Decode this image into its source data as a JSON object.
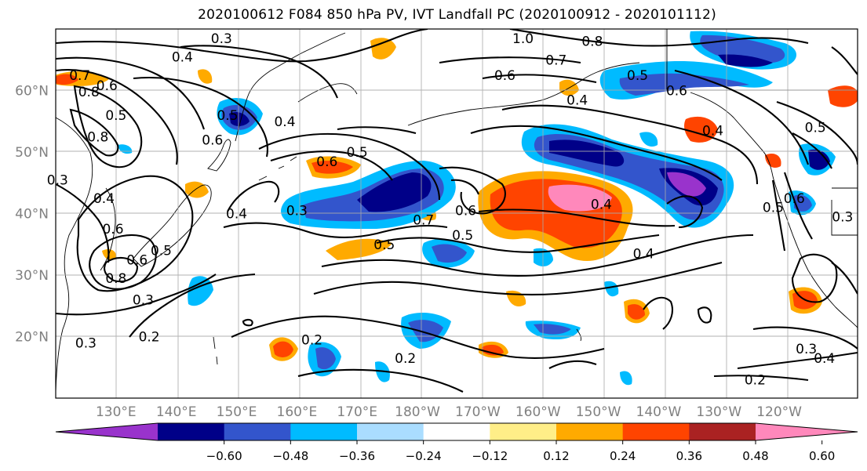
{
  "title": "2020100612 F084 850 hPa PV, IVT Landfall PC (2020100912 - 2020101112)",
  "map": {
    "projection": "PlateCarree",
    "lon_range": [
      120,
      253
    ],
    "lat_range": [
      10,
      70
    ],
    "lat_ticks": [
      {
        "lat": 60,
        "label": "60°N"
      },
      {
        "lat": 50,
        "label": "50°N"
      },
      {
        "lat": 40,
        "label": "40°N"
      },
      {
        "lat": 30,
        "label": "30°N"
      },
      {
        "lat": 20,
        "label": "20°N"
      }
    ],
    "lon_ticks": [
      {
        "lon": 130,
        "label": "130°E"
      },
      {
        "lon": 140,
        "label": "140°E"
      },
      {
        "lon": 150,
        "label": "150°E"
      },
      {
        "lon": 160,
        "label": "160°E"
      },
      {
        "lon": 170,
        "label": "170°E"
      },
      {
        "lon": 180,
        "label": "180°W"
      },
      {
        "lon": 190,
        "label": "170°W"
      },
      {
        "lon": 200,
        "label": "160°W"
      },
      {
        "lon": 210,
        "label": "150°W"
      },
      {
        "lon": 220,
        "label": "140°W"
      },
      {
        "lon": 230,
        "label": "130°W"
      },
      {
        "lon": 240,
        "label": "120°W"
      }
    ],
    "grid_lines": true,
    "tick_label_color": "#808080"
  },
  "colorbar": {
    "ticks": [
      "−0.60",
      "−0.48",
      "−0.36",
      "−0.24",
      "−0.12",
      "0.12",
      "0.24",
      "0.36",
      "0.48",
      "0.60"
    ],
    "colors": [
      "#9933cc",
      "#000088",
      "#3355cc",
      "#00bbff",
      "#aaddff",
      "#ffffff",
      "#ffee88",
      "#ffaa00",
      "#ff4400",
      "#aa2222",
      "#ff88bb"
    ],
    "extend": "both"
  },
  "contour_labels": [
    {
      "text": "0.3",
      "lon": 147.5,
      "lat": 68.5
    },
    {
      "text": "0.4",
      "lon": 141.0,
      "lat": 65.5
    },
    {
      "text": "0.7",
      "lon": 124.0,
      "lat": 62.5
    },
    {
      "text": "0.6",
      "lon": 128.5,
      "lat": 60.8
    },
    {
      "text": "0.8",
      "lon": 125.5,
      "lat": 59.8
    },
    {
      "text": "0.5",
      "lon": 130.0,
      "lat": 56.0
    },
    {
      "text": "0.8",
      "lon": 127.0,
      "lat": 52.5
    },
    {
      "text": "0.5",
      "lon": 148.5,
      "lat": 56.0
    },
    {
      "text": "0.4",
      "lon": 158.0,
      "lat": 55.0
    },
    {
      "text": "0.6",
      "lon": 146.0,
      "lat": 52.0
    },
    {
      "text": "0.5",
      "lon": 170.0,
      "lat": 50.0
    },
    {
      "text": "0.6",
      "lon": 165.0,
      "lat": 48.5
    },
    {
      "text": "0.3",
      "lon": 120.3,
      "lat": 45.5
    },
    {
      "text": "0.4",
      "lon": 128.0,
      "lat": 42.5
    },
    {
      "text": "0.6",
      "lon": 129.5,
      "lat": 37.5
    },
    {
      "text": "0.4",
      "lon": 150.0,
      "lat": 40.0
    },
    {
      "text": "0.3",
      "lon": 160.0,
      "lat": 40.5
    },
    {
      "text": "0.7",
      "lon": 181.0,
      "lat": 39.0
    },
    {
      "text": "0.6",
      "lon": 188.0,
      "lat": 40.5
    },
    {
      "text": "0.5",
      "lon": 187.5,
      "lat": 36.5
    },
    {
      "text": "0.5",
      "lon": 174.5,
      "lat": 35.0
    },
    {
      "text": "0.5",
      "lon": 137.5,
      "lat": 34.0
    },
    {
      "text": "0.6",
      "lon": 133.5,
      "lat": 32.5
    },
    {
      "text": "0.8",
      "lon": 130.0,
      "lat": 29.5
    },
    {
      "text": "0.3",
      "lon": 134.5,
      "lat": 26.0
    },
    {
      "text": "0.3",
      "lon": 125.0,
      "lat": 19.0
    },
    {
      "text": "0.2",
      "lon": 135.5,
      "lat": 20.0
    },
    {
      "text": "0.2",
      "lon": 162.5,
      "lat": 19.5
    },
    {
      "text": "0.2",
      "lon": 178.0,
      "lat": 16.5
    },
    {
      "text": "1.0",
      "lon": 197.5,
      "lat": 68.5
    },
    {
      "text": "0.8",
      "lon": 209.0,
      "lat": 68.0
    },
    {
      "text": "0.7",
      "lon": 203.0,
      "lat": 65.0
    },
    {
      "text": "0.6",
      "lon": 194.5,
      "lat": 62.5
    },
    {
      "text": "0.5",
      "lon": 216.5,
      "lat": 62.5
    },
    {
      "text": "0.6",
      "lon": 223.0,
      "lat": 60.0
    },
    {
      "text": "0.4",
      "lon": 206.5,
      "lat": 58.5
    },
    {
      "text": "0.4",
      "lon": 229.0,
      "lat": 53.5
    },
    {
      "text": "0.5",
      "lon": 246.0,
      "lat": 54.0
    },
    {
      "text": "0.4",
      "lon": 210.5,
      "lat": 41.5
    },
    {
      "text": "0.4",
      "lon": 217.5,
      "lat": 33.5
    },
    {
      "text": "0.5",
      "lon": 239.0,
      "lat": 41.0
    },
    {
      "text": "0.6",
      "lon": 242.5,
      "lat": 42.5
    },
    {
      "text": "0.3",
      "lon": 250.5,
      "lat": 39.5
    },
    {
      "text": "0.3",
      "lon": 244.5,
      "lat": 18.0
    },
    {
      "text": "0.4",
      "lon": 247.5,
      "lat": 16.5
    },
    {
      "text": "0.2",
      "lon": 236.0,
      "lat": 13.0
    }
  ]
}
